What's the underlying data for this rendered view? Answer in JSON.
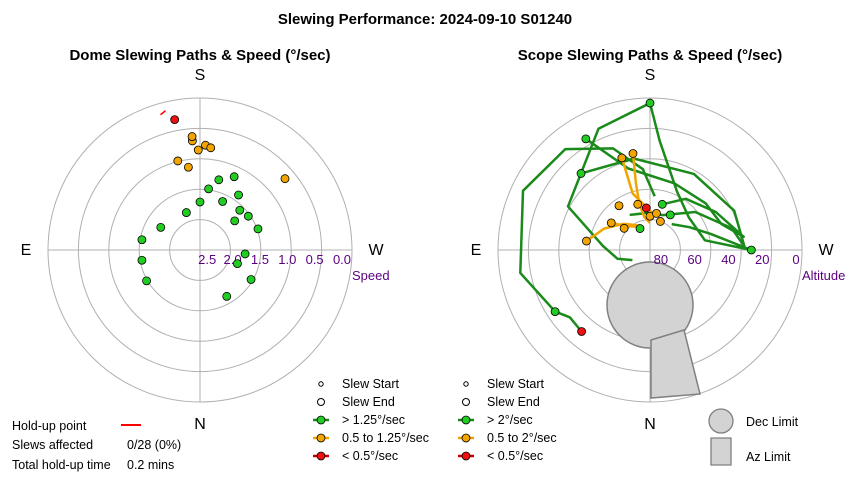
{
  "title": "Slewing Performance: 2024-09-10 S01240",
  "footer": {
    "holdup_label": "Hold-up point",
    "slews_affected_label": "Slews affected",
    "slews_affected_value": "0/28 (0%)",
    "total_holdup_label": "Total hold-up time",
    "total_holdup_value": "0.2 mins",
    "holdup_color": "#ff0000"
  },
  "colors": {
    "fast": "#1a8a1a",
    "fast_fill": "#22cc22",
    "medium": "#f2a400",
    "medium_fill": "#f2a400",
    "slow": "#cc0000",
    "slow_fill": "#ee1111",
    "grid": "#b0b0b0",
    "speed_label": "#5a0080",
    "limit_fill": "#d3d3d3",
    "limit_edge": "#808080"
  },
  "chart_data": [
    {
      "type": "scatter",
      "projection": "polar",
      "title": "Dome Slewing Paths & Speed (°/sec)",
      "cardinals": {
        "top": "S",
        "bottom": "N",
        "left": "E",
        "right": "W"
      },
      "radial_label": "Speed",
      "radial_ticks": [
        "2.5",
        "2.0",
        "1.5",
        "1.0",
        "0.5",
        "0.0"
      ],
      "legend": {
        "slew_start": "Slew Start",
        "slew_end": "Slew End",
        "fast": "> 1.25°/sec",
        "medium": "0.5 to 1.25°/sec",
        "slow": "< 0.5°/sec"
      },
      "points": [
        {
          "az": 169,
          "speed": 0.35,
          "class": "slow"
        },
        {
          "az": 176,
          "speed": 0.78,
          "class": "medium"
        },
        {
          "az": 176,
          "speed": 0.7,
          "class": "medium"
        },
        {
          "az": 179,
          "speed": 0.95,
          "class": "medium"
        },
        {
          "az": 183,
          "speed": 0.86,
          "class": "medium"
        },
        {
          "az": 186,
          "speed": 0.9,
          "class": "medium"
        },
        {
          "az": 166,
          "speed": 1.1,
          "class": "medium"
        },
        {
          "az": 172,
          "speed": 1.25,
          "class": "medium"
        },
        {
          "az": 230,
          "speed": 0.75,
          "class": "medium"
        },
        {
          "az": 205,
          "speed": 1.3,
          "class": "fast"
        },
        {
          "az": 215,
          "speed": 1.55,
          "class": "fast"
        },
        {
          "az": 195,
          "speed": 1.45,
          "class": "fast"
        },
        {
          "az": 188,
          "speed": 1.65,
          "class": "fast"
        },
        {
          "az": 235,
          "speed": 1.7,
          "class": "fast"
        },
        {
          "az": 250,
          "speed": 1.65,
          "class": "fast"
        },
        {
          "az": 225,
          "speed": 1.75,
          "class": "fast"
        },
        {
          "az": 205,
          "speed": 1.8,
          "class": "fast"
        },
        {
          "az": 180,
          "speed": 1.9,
          "class": "fast"
        },
        {
          "az": 160,
          "speed": 2.05,
          "class": "fast"
        },
        {
          "az": 120,
          "speed": 1.95,
          "class": "fast"
        },
        {
          "az": 100,
          "speed": 1.7,
          "class": "fast"
        },
        {
          "az": 80,
          "speed": 1.7,
          "class": "fast"
        },
        {
          "az": 60,
          "speed": 1.65,
          "class": "fast"
        },
        {
          "az": 275,
          "speed": 1.95,
          "class": "fast"
        },
        {
          "az": 290,
          "speed": 2.05,
          "class": "fast"
        },
        {
          "az": 300,
          "speed": 1.7,
          "class": "fast"
        },
        {
          "az": 330,
          "speed": 1.8,
          "class": "fast"
        },
        {
          "az": 230,
          "speed": 1.95,
          "class": "fast"
        }
      ],
      "holdups": [
        {
          "az": 165,
          "speed": 0.2
        }
      ]
    },
    {
      "type": "scatter",
      "projection": "polar",
      "title": "Scope Slewing Paths & Speed (°/sec)",
      "cardinals": {
        "top": "S",
        "bottom": "N",
        "left": "E",
        "right": "W"
      },
      "radial_label": "Altitude",
      "radial_ticks": [
        "80",
        "60",
        "40",
        "20",
        "0"
      ],
      "legend": {
        "slew_start": "Slew Start",
        "slew_end": "Slew End",
        "fast": "> 2°/sec",
        "medium": "0.5 to 2°/sec",
        "slow": "< 0.5°/sec",
        "dec_limit": "Dec Limit",
        "az_limit": "Az Limit"
      },
      "paths": [
        {
          "class": "fast",
          "points": [
            [
              180,
              3
            ],
            [
              157,
              12
            ],
            [
              118,
              35
            ],
            [
              95,
              62
            ],
            [
              75,
              70
            ],
            [
              60,
              78
            ]
          ]
        },
        {
          "class": "fast",
          "points": [
            [
              180,
              3
            ],
            [
              185,
              25
            ],
            [
              205,
              52
            ],
            [
              230,
              60
            ],
            [
              260,
              57
            ],
            [
              270,
              30
            ],
            [
              255,
              53
            ],
            [
              240,
              63
            ],
            [
              220,
              70
            ]
          ]
        },
        {
          "class": "fast",
          "points": [
            [
              150,
              14
            ],
            [
              165,
              40
            ],
            [
              200,
              48
            ],
            [
              230,
              47
            ],
            [
              250,
              45
            ],
            [
              262,
              34
            ],
            [
              240,
              45
            ],
            [
              215,
              53
            ],
            [
              195,
              62
            ]
          ]
        },
        {
          "class": "fast",
          "points": [
            [
              138,
              29
            ],
            [
              170,
              35
            ],
            [
              210,
              38
            ],
            [
              245,
              35
            ],
            [
              268,
              34
            ],
            [
              255,
              40
            ],
            [
              230,
              55
            ],
            [
              200,
              68
            ],
            [
              175,
              68
            ],
            [
              150,
              66
            ]
          ]
        },
        {
          "class": "fast",
          "points": [
            [
              57,
              23
            ],
            [
              80,
              12
            ],
            [
              115,
              7
            ],
            [
              140,
              12
            ],
            [
              160,
              26
            ],
            [
              175,
              42
            ],
            [
              185,
              58
            ]
          ]
        },
        {
          "class": "fast",
          "points": [
            [
              57,
              23
            ],
            [
              50,
              28
            ],
            [
              40,
              27
            ]
          ]
        },
        {
          "class": "medium",
          "points": [
            [
              170,
              32
            ],
            [
              168,
              50
            ],
            [
              167,
              62
            ],
            [
              170,
              70
            ],
            [
              180,
              74
            ]
          ]
        },
        {
          "class": "medium",
          "points": [
            [
              163,
              33
            ],
            [
              163,
              55
            ],
            [
              176,
              65
            ],
            [
              190,
              70
            ]
          ]
        },
        {
          "class": "medium",
          "points": [
            [
              98,
              52
            ],
            [
              115,
              60
            ],
            [
              135,
              68
            ],
            [
              155,
              74
            ],
            [
              165,
              76
            ]
          ]
        },
        {
          "class": "medium",
          "points": [
            [
              125,
              62
            ],
            [
              135,
              70
            ],
            [
              150,
              74
            ],
            [
              160,
              78
            ]
          ]
        }
      ],
      "points": [
        {
          "az": 180,
          "alt": 3,
          "class": "fast"
        },
        {
          "az": 150,
          "alt": 14,
          "class": "fast"
        },
        {
          "az": 138,
          "alt": 29,
          "class": "fast"
        },
        {
          "az": 57,
          "alt": 23,
          "class": "fast"
        },
        {
          "az": 270,
          "alt": 30,
          "class": "fast"
        },
        {
          "az": 195,
          "alt": 62,
          "class": "fast"
        },
        {
          "az": 40,
          "alt": 27,
          "class": "slow"
        },
        {
          "az": 175,
          "alt": 65,
          "class": "slow"
        },
        {
          "az": 98,
          "alt": 52,
          "class": "medium"
        },
        {
          "az": 170,
          "alt": 32,
          "class": "medium"
        },
        {
          "az": 163,
          "alt": 33,
          "class": "medium"
        },
        {
          "az": 125,
          "alt": 62,
          "class": "medium"
        },
        {
          "az": 165,
          "alt": 62,
          "class": "medium"
        },
        {
          "az": 180,
          "alt": 70,
          "class": "medium"
        },
        {
          "az": 190,
          "alt": 68,
          "class": "medium"
        },
        {
          "az": 145,
          "alt": 58,
          "class": "medium"
        },
        {
          "az": 130,
          "alt": 70,
          "class": "medium"
        },
        {
          "az": 200,
          "alt": 72,
          "class": "medium"
        },
        {
          "az": 155,
          "alt": 76,
          "class": "fast"
        },
        {
          "az": 210,
          "alt": 66,
          "class": "fast"
        }
      ],
      "holdups": []
    }
  ]
}
